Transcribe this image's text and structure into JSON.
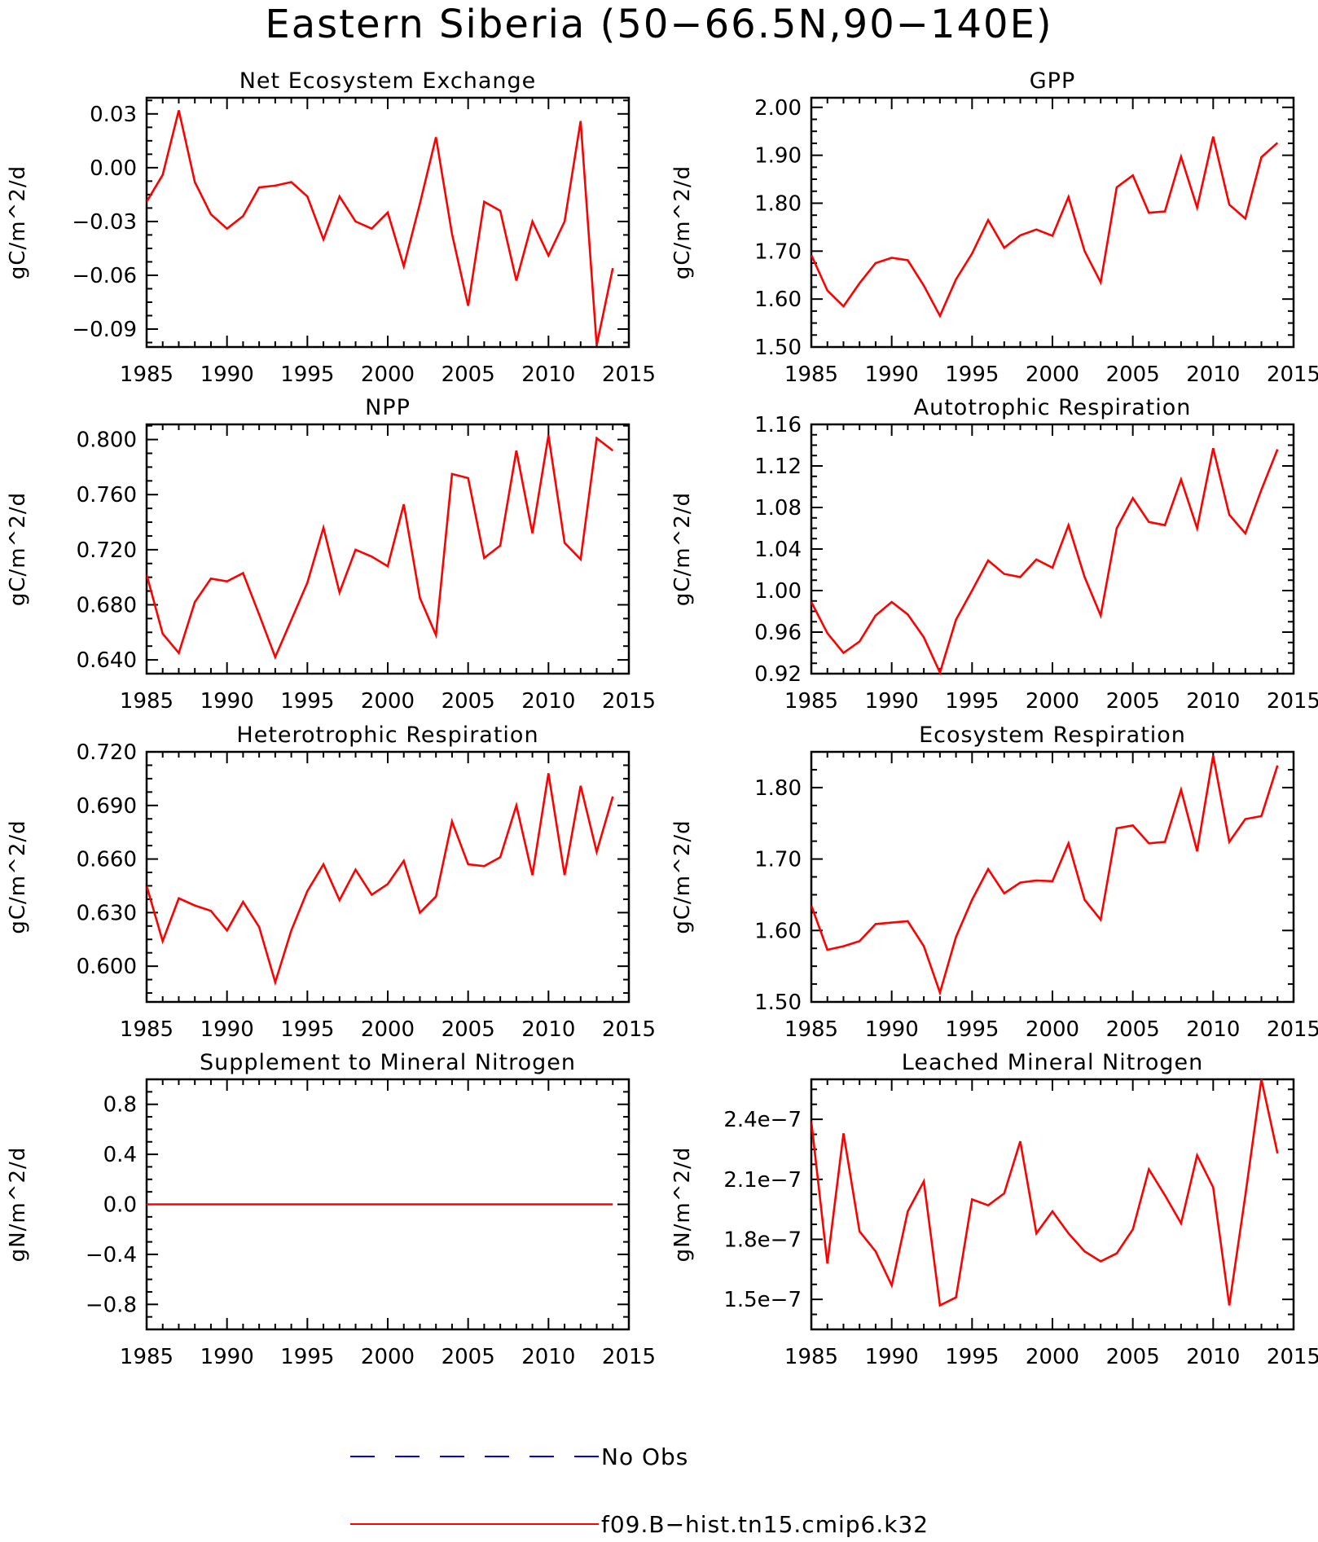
{
  "title": "Eastern Siberia (50−66.5N,90−140E)",
  "colors": {
    "model": "#ff0000",
    "obs": "#0000ff",
    "axis": "#000000"
  },
  "legend": [
    {
      "label": "No Obs",
      "style": "dashed",
      "color": "#0000ff"
    },
    {
      "label": "f09.B−hist.tn15.cmip6.k32",
      "style": "solid",
      "color": "#ff0000"
    }
  ],
  "chart_data": [
    {
      "type": "line",
      "title": "Net Ecosystem Exchange",
      "ylabel": "gC/m^2/d",
      "xlim": [
        1985,
        2015
      ],
      "ylim": [
        -0.1,
        0.039
      ],
      "xticks": [
        1985,
        1990,
        1995,
        2000,
        2005,
        2010,
        2015
      ],
      "xtick_labels": [
        "1985",
        "1990",
        "1995",
        "2000",
        "2005",
        "2010",
        "2015"
      ],
      "yticks": [
        0.03,
        0,
        -0.03,
        -0.06,
        -0.09
      ],
      "ytick_labels": [
        "0.03",
        "0.00",
        "−0.03",
        "−0.06",
        "−0.09"
      ],
      "x": [
        1985,
        1986,
        1987,
        1988,
        1989,
        1990,
        1991,
        1992,
        1993,
        1994,
        1995,
        1996,
        1997,
        1998,
        1999,
        2000,
        2001,
        2002,
        2003,
        2004,
        2005,
        2006,
        2007,
        2008,
        2009,
        2010,
        2011,
        2012,
        2013,
        2014
      ],
      "series": [
        {
          "name": "f09.B−hist.tn15.cmip6.k32",
          "values": [
            -0.019,
            -0.004,
            0.032,
            -0.008,
            -0.026,
            -0.034,
            -0.027,
            -0.011,
            -0.01,
            -0.008,
            -0.016,
            -0.04,
            -0.016,
            -0.03,
            -0.034,
            -0.025,
            -0.055,
            -0.02,
            0.017,
            -0.037,
            -0.077,
            -0.019,
            -0.024,
            -0.063,
            -0.03,
            -0.049,
            -0.03,
            0.026,
            -0.099,
            -0.056
          ]
        }
      ]
    },
    {
      "type": "line",
      "title": "GPP",
      "ylabel": "gC/m^2/d",
      "xlim": [
        1985,
        2015
      ],
      "ylim": [
        1.5,
        2.02
      ],
      "xticks": [
        1985,
        1990,
        1995,
        2000,
        2005,
        2010,
        2015
      ],
      "xtick_labels": [
        "1985",
        "1990",
        "1995",
        "2000",
        "2005",
        "2010",
        "2015"
      ],
      "yticks": [
        1.5,
        1.6,
        1.7,
        1.8,
        1.9,
        2.0
      ],
      "ytick_labels": [
        "1.50",
        "1.60",
        "1.70",
        "1.80",
        "1.90",
        "2.00"
      ],
      "x": [
        1985,
        1986,
        1987,
        1988,
        1989,
        1990,
        1991,
        1992,
        1993,
        1994,
        1995,
        1996,
        1997,
        1998,
        1999,
        2000,
        2001,
        2002,
        2003,
        2004,
        2005,
        2006,
        2007,
        2008,
        2009,
        2010,
        2011,
        2012,
        2013,
        2014
      ],
      "series": [
        {
          "name": "f09.B−hist.tn15.cmip6.k32",
          "values": [
            1.692,
            1.618,
            1.585,
            1.633,
            1.675,
            1.686,
            1.681,
            1.628,
            1.565,
            1.641,
            1.695,
            1.765,
            1.707,
            1.733,
            1.745,
            1.732,
            1.813,
            1.7,
            1.635,
            1.833,
            1.858,
            1.78,
            1.783,
            1.897,
            1.791,
            1.939,
            1.797,
            1.768,
            1.896,
            1.926
          ]
        }
      ]
    },
    {
      "type": "line",
      "title": "NPP",
      "ylabel": "gC/m^2/d",
      "xlim": [
        1985,
        2015
      ],
      "ylim": [
        0.63,
        0.811
      ],
      "xticks": [
        1985,
        1990,
        1995,
        2000,
        2005,
        2010,
        2015
      ],
      "xtick_labels": [
        "1985",
        "1990",
        "1995",
        "2000",
        "2005",
        "2010",
        "2015"
      ],
      "yticks": [
        0.64,
        0.68,
        0.72,
        0.76,
        0.8
      ],
      "ytick_labels": [
        "0.640",
        "0.680",
        "0.720",
        "0.760",
        "0.800"
      ],
      "x": [
        1985,
        1986,
        1987,
        1988,
        1989,
        1990,
        1991,
        1992,
        1993,
        1994,
        1995,
        1996,
        1997,
        1998,
        1999,
        2000,
        2001,
        2002,
        2003,
        2004,
        2005,
        2006,
        2007,
        2008,
        2009,
        2010,
        2011,
        2012,
        2013,
        2014
      ],
      "series": [
        {
          "name": "f09.B−hist.tn15.cmip6.k32",
          "values": [
            0.702,
            0.659,
            0.645,
            0.682,
            0.699,
            0.697,
            0.703,
            0.673,
            0.642,
            0.669,
            0.696,
            0.736,
            0.689,
            0.72,
            0.715,
            0.708,
            0.753,
            0.685,
            0.658,
            0.775,
            0.772,
            0.714,
            0.723,
            0.792,
            0.732,
            0.803,
            0.725,
            0.713,
            0.801,
            0.792
          ]
        }
      ]
    },
    {
      "type": "line",
      "title": "Autotrophic Respiration",
      "ylabel": "gC/m^2/d",
      "xlim": [
        1985,
        2015
      ],
      "ylim": [
        0.92,
        1.16
      ],
      "xticks": [
        1985,
        1990,
        1995,
        2000,
        2005,
        2010,
        2015
      ],
      "xtick_labels": [
        "1985",
        "1990",
        "1995",
        "2000",
        "2005",
        "2010",
        "2015"
      ],
      "yticks": [
        0.92,
        0.96,
        1.0,
        1.04,
        1.08,
        1.12,
        1.16
      ],
      "ytick_labels": [
        "0.92",
        "0.96",
        "1.00",
        "1.04",
        "1.08",
        "1.12",
        "1.16"
      ],
      "x": [
        1985,
        1986,
        1987,
        1988,
        1989,
        1990,
        1991,
        1992,
        1993,
        1994,
        1995,
        1996,
        1997,
        1998,
        1999,
        2000,
        2001,
        2002,
        2003,
        2004,
        2005,
        2006,
        2007,
        2008,
        2009,
        2010,
        2011,
        2012,
        2013,
        2014
      ],
      "series": [
        {
          "name": "f09.B−hist.tn15.cmip6.k32",
          "values": [
            0.989,
            0.959,
            0.94,
            0.951,
            0.976,
            0.989,
            0.977,
            0.955,
            0.921,
            0.972,
            1.0,
            1.029,
            1.016,
            1.013,
            1.03,
            1.022,
            1.063,
            1.013,
            0.976,
            1.06,
            1.089,
            1.066,
            1.063,
            1.107,
            1.06,
            1.137,
            1.073,
            1.055,
            1.097,
            1.136
          ]
        }
      ]
    },
    {
      "type": "line",
      "title": "Heterotrophic Respiration",
      "ylabel": "gC/m^2/d",
      "xlim": [
        1985,
        2015
      ],
      "ylim": [
        0.58,
        0.72
      ],
      "xticks": [
        1985,
        1990,
        1995,
        2000,
        2005,
        2010,
        2015
      ],
      "xtick_labels": [
        "1985",
        "1990",
        "1995",
        "2000",
        "2005",
        "2010",
        "2015"
      ],
      "yticks": [
        0.6,
        0.63,
        0.66,
        0.69,
        0.72
      ],
      "ytick_labels": [
        "0.600",
        "0.630",
        "0.660",
        "0.690",
        "0.720"
      ],
      "x": [
        1985,
        1986,
        1987,
        1988,
        1989,
        1990,
        1991,
        1992,
        1993,
        1994,
        1995,
        1996,
        1997,
        1998,
        1999,
        2000,
        2001,
        2002,
        2003,
        2004,
        2005,
        2006,
        2007,
        2008,
        2009,
        2010,
        2011,
        2012,
        2013,
        2014
      ],
      "series": [
        {
          "name": "f09.B−hist.tn15.cmip6.k32",
          "values": [
            0.645,
            0.614,
            0.638,
            0.634,
            0.631,
            0.62,
            0.636,
            0.622,
            0.591,
            0.62,
            0.642,
            0.657,
            0.637,
            0.654,
            0.64,
            0.646,
            0.659,
            0.63,
            0.639,
            0.681,
            0.657,
            0.656,
            0.661,
            0.69,
            0.651,
            0.708,
            0.651,
            0.701,
            0.664,
            0.695
          ]
        }
      ]
    },
    {
      "type": "line",
      "title": "Ecosystem Respiration",
      "ylabel": "gC/m^2/d",
      "xlim": [
        1985,
        2015
      ],
      "ylim": [
        1.5,
        1.85
      ],
      "xticks": [
        1985,
        1990,
        1995,
        2000,
        2005,
        2010,
        2015
      ],
      "xtick_labels": [
        "1985",
        "1990",
        "1995",
        "2000",
        "2005",
        "2010",
        "2015"
      ],
      "yticks": [
        1.5,
        1.6,
        1.7,
        1.8
      ],
      "ytick_labels": [
        "1.50",
        "1.60",
        "1.70",
        "1.80"
      ],
      "x": [
        1985,
        1986,
        1987,
        1988,
        1989,
        1990,
        1991,
        1992,
        1993,
        1994,
        1995,
        1996,
        1997,
        1998,
        1999,
        2000,
        2001,
        2002,
        2003,
        2004,
        2005,
        2006,
        2007,
        2008,
        2009,
        2010,
        2011,
        2012,
        2013,
        2014
      ],
      "series": [
        {
          "name": "f09.B−hist.tn15.cmip6.k32",
          "values": [
            1.635,
            1.573,
            1.578,
            1.585,
            1.609,
            1.611,
            1.613,
            1.578,
            1.513,
            1.591,
            1.643,
            1.686,
            1.652,
            1.667,
            1.67,
            1.669,
            1.722,
            1.643,
            1.615,
            1.743,
            1.747,
            1.722,
            1.724,
            1.797,
            1.711,
            1.845,
            1.724,
            1.756,
            1.76,
            1.831
          ]
        }
      ]
    },
    {
      "type": "line",
      "title": "Supplement to Mineral Nitrogen",
      "ylabel": "gN/m^2/d",
      "xlim": [
        1985,
        2015
      ],
      "ylim": [
        -1.0,
        1.0
      ],
      "xticks": [
        1985,
        1990,
        1995,
        2000,
        2005,
        2010,
        2015
      ],
      "xtick_labels": [
        "1985",
        "1990",
        "1995",
        "2000",
        "2005",
        "2010",
        "2015"
      ],
      "yticks": [
        0.8,
        0.4,
        0.0,
        -0.4,
        -0.8
      ],
      "ytick_labels": [
        "0.8",
        "0.4",
        "0.0",
        "−0.4",
        "−0.8"
      ],
      "x": [
        1985,
        1986,
        1987,
        1988,
        1989,
        1990,
        1991,
        1992,
        1993,
        1994,
        1995,
        1996,
        1997,
        1998,
        1999,
        2000,
        2001,
        2002,
        2003,
        2004,
        2005,
        2006,
        2007,
        2008,
        2009,
        2010,
        2011,
        2012,
        2013,
        2014
      ],
      "series": [
        {
          "name": "f09.B−hist.tn15.cmip6.k32",
          "values": [
            0,
            0,
            0,
            0,
            0,
            0,
            0,
            0,
            0,
            0,
            0,
            0,
            0,
            0,
            0,
            0,
            0,
            0,
            0,
            0,
            0,
            0,
            0,
            0,
            0,
            0,
            0,
            0,
            0,
            0
          ]
        }
      ]
    },
    {
      "type": "line",
      "title": "Leached Mineral Nitrogen",
      "ylabel": "gN/m^2/d",
      "xlim": [
        1985,
        2015
      ],
      "ylim": [
        1.35e-07,
        2.6e-07
      ],
      "xticks": [
        1985,
        1990,
        1995,
        2000,
        2005,
        2010,
        2015
      ],
      "xtick_labels": [
        "1985",
        "1990",
        "1995",
        "2000",
        "2005",
        "2010",
        "2015"
      ],
      "yticks": [
        1.5e-07,
        1.8e-07,
        2.1e-07,
        2.4e-07
      ],
      "ytick_labels": [
        "1.5e−7",
        "1.8e−7",
        "2.1e−7",
        "2.4e−7"
      ],
      "x": [
        1985,
        1986,
        1987,
        1988,
        1989,
        1990,
        1991,
        1992,
        1993,
        1994,
        1995,
        1996,
        1997,
        1998,
        1999,
        2000,
        2001,
        2002,
        2003,
        2004,
        2005,
        2006,
        2007,
        2008,
        2009,
        2010,
        2011,
        2012,
        2013,
        2014
      ],
      "series": [
        {
          "name": "f09.B−hist.tn15.cmip6.k32",
          "values": [
            2.39e-07,
            1.68e-07,
            2.33e-07,
            1.84e-07,
            1.74e-07,
            1.57e-07,
            1.94e-07,
            2.09e-07,
            1.47e-07,
            1.51e-07,
            2e-07,
            1.97e-07,
            2.03e-07,
            2.29e-07,
            1.83e-07,
            1.94e-07,
            1.83e-07,
            1.74e-07,
            1.69e-07,
            1.73e-07,
            1.85e-07,
            2.15e-07,
            2.02e-07,
            1.88e-07,
            2.22e-07,
            2.06e-07,
            1.47e-07,
            2.02e-07,
            2.6e-07,
            2.23e-07
          ]
        }
      ]
    }
  ]
}
